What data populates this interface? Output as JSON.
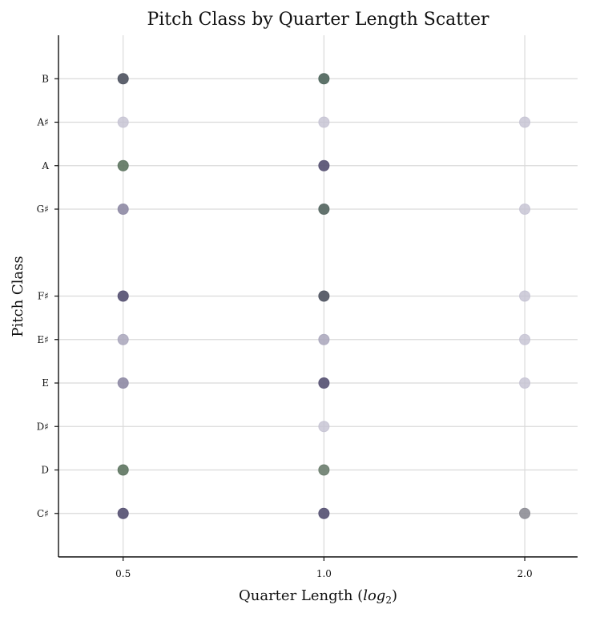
{
  "chart_data": {
    "type": "scatter",
    "title": "Pitch Class by Quarter Length Scatter",
    "xlabel_main": "Quarter Length (",
    "xlabel_math": "log",
    "xlabel_sub": "2",
    "xlabel_close": ")",
    "ylabel": "Pitch Class",
    "x_scale": "log2",
    "x_ticks": [
      0.5,
      1.0,
      2.0
    ],
    "x_tick_labels": [
      "0.5",
      "1.0",
      "2.0"
    ],
    "xlim": [
      0.4,
      2.4
    ],
    "y_categories": [
      "C♯",
      "D",
      "D♯",
      "E",
      "E♯",
      "F♯",
      "G♯",
      "A",
      "A♯",
      "B"
    ],
    "y_values": [
      1,
      2,
      3,
      4,
      5,
      6,
      8,
      9,
      10,
      11
    ],
    "ylim": [
      0.0,
      12.0
    ],
    "grid": true,
    "colors": {
      "light": "#c4c2d2",
      "medium": "#8e8aa4",
      "dark": "#5c5777",
      "green": "#5e7561",
      "gray": "#8e8e96"
    },
    "points": [
      {
        "x": 0.5,
        "y": 11,
        "color": "#555a66",
        "alpha": 0.95
      },
      {
        "x": 1.0,
        "y": 11,
        "color": "#556b62",
        "alpha": 0.95
      },
      {
        "x": 0.5,
        "y": 10,
        "color": "#c4c2d2",
        "alpha": 0.8
      },
      {
        "x": 1.0,
        "y": 10,
        "color": "#c4c2d2",
        "alpha": 0.8
      },
      {
        "x": 2.0,
        "y": 10,
        "color": "#c4c2d2",
        "alpha": 0.8
      },
      {
        "x": 0.5,
        "y": 9,
        "color": "#5e7561",
        "alpha": 0.9
      },
      {
        "x": 1.0,
        "y": 9,
        "color": "#5c5777",
        "alpha": 0.95
      },
      {
        "x": 0.5,
        "y": 8,
        "color": "#8e8aa4",
        "alpha": 0.9
      },
      {
        "x": 1.0,
        "y": 8,
        "color": "#5b6b66",
        "alpha": 0.95
      },
      {
        "x": 2.0,
        "y": 8,
        "color": "#c4c2d2",
        "alpha": 0.8
      },
      {
        "x": 0.5,
        "y": 6,
        "color": "#5c5777",
        "alpha": 0.95
      },
      {
        "x": 1.0,
        "y": 6,
        "color": "#555a66",
        "alpha": 0.95
      },
      {
        "x": 2.0,
        "y": 6,
        "color": "#c4c2d2",
        "alpha": 0.8
      },
      {
        "x": 0.5,
        "y": 5,
        "color": "#a9a6bb",
        "alpha": 0.85
      },
      {
        "x": 1.0,
        "y": 5,
        "color": "#a9a6bb",
        "alpha": 0.85
      },
      {
        "x": 2.0,
        "y": 5,
        "color": "#c4c2d2",
        "alpha": 0.8
      },
      {
        "x": 0.5,
        "y": 4,
        "color": "#8e8aa4",
        "alpha": 0.9
      },
      {
        "x": 1.0,
        "y": 4,
        "color": "#5c5777",
        "alpha": 0.95
      },
      {
        "x": 2.0,
        "y": 4,
        "color": "#c4c2d2",
        "alpha": 0.8
      },
      {
        "x": 1.0,
        "y": 3,
        "color": "#c4c2d2",
        "alpha": 0.8
      },
      {
        "x": 0.5,
        "y": 2,
        "color": "#5e7561",
        "alpha": 0.9
      },
      {
        "x": 1.0,
        "y": 2,
        "color": "#6b7d6e",
        "alpha": 0.9
      },
      {
        "x": 0.5,
        "y": 1,
        "color": "#5c5777",
        "alpha": 0.95
      },
      {
        "x": 1.0,
        "y": 1,
        "color": "#5c5777",
        "alpha": 0.95
      },
      {
        "x": 2.0,
        "y": 1,
        "color": "#8e8e96",
        "alpha": 0.9
      }
    ]
  }
}
